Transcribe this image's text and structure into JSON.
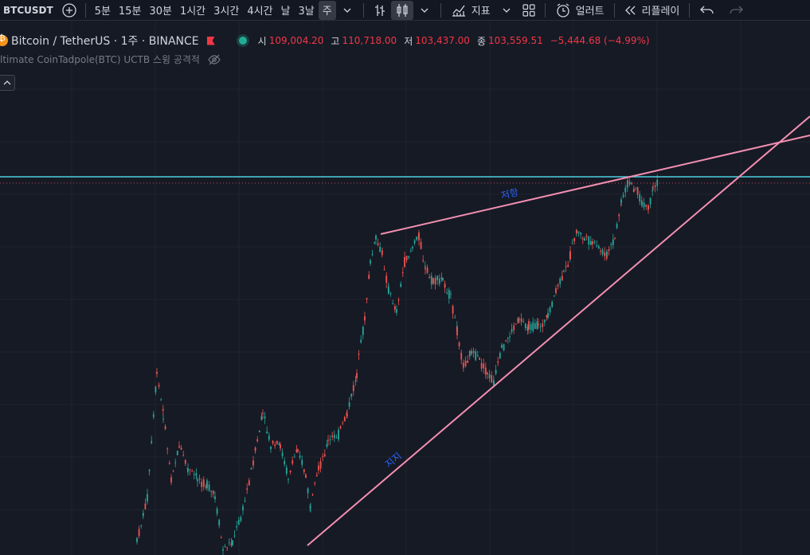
{
  "toolbar": {
    "symbol": "BTCUSDT",
    "intervals": [
      "5분",
      "15분",
      "30분",
      "1시간",
      "3시간",
      "4시간",
      "날",
      "3날",
      "주"
    ],
    "active_interval": "주",
    "indicators_label": "지표",
    "alert_label": "얼러트",
    "replay_label": "리플레이"
  },
  "legend": {
    "title": "Bitcoin / TetherUS · 1주 · BINANCE",
    "open_label": "시",
    "open": "109,004.20",
    "high_label": "고",
    "high": "110,718.00",
    "low_label": "저",
    "low": "103,437.00",
    "close_label": "종",
    "close": "103,559.51",
    "change": "−5,444.68 (−4.99%)",
    "indicator": "ltimate CoinTadpole(BTC) UCTB 스윙 공격적"
  },
  "colors": {
    "background": "#161a25",
    "up": "#26a69a",
    "down": "#ef5350",
    "trendline": "#f48fb1",
    "horizontal_line": "#4dd0e1",
    "annotation_text": "#2962ff"
  },
  "annotations": {
    "resistance": "저항",
    "support": "지지"
  },
  "chart_data": {
    "type": "candlestick",
    "series": [
      {
        "name": "BTCUSDT weekly",
        "segments": "uptrend from ~15,500 to ~110,700 within a rising wedge"
      }
    ],
    "lines": [
      {
        "name": "저항",
        "kind": "trendline"
      },
      {
        "name": "지지",
        "kind": "trendline"
      },
      {
        "kind": "horizontal"
      }
    ]
  }
}
